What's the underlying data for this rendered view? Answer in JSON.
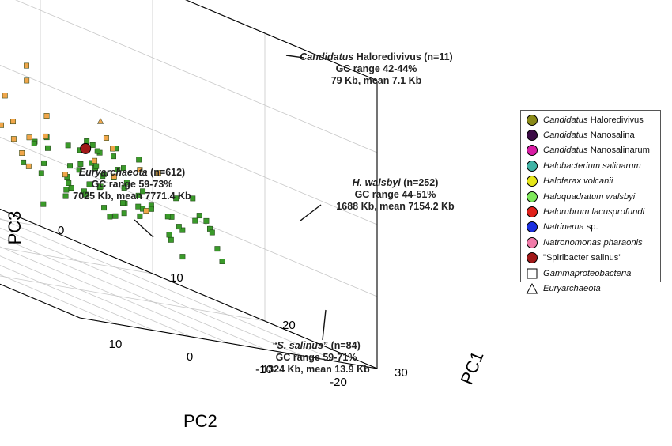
{
  "chart_data": {
    "type": "scatter",
    "projection": "3d",
    "axes": {
      "pc1": {
        "label": "PC1",
        "range": [
          -20,
          30
        ],
        "ticks": [
          -20,
          -10,
          0,
          10,
          20,
          30
        ],
        "tick_labels": [
          "-20",
          "-10",
          "0",
          "10",
          "20",
          "30"
        ]
      },
      "pc2": {
        "label": "PC2",
        "range": [
          -25,
          15
        ],
        "ticks": [
          10,
          0,
          -10,
          -20
        ],
        "tick_labels": [
          "10",
          "0",
          "-10",
          "-20"
        ]
      },
      "pc3": {
        "label": "PC3",
        "range": [
          -10,
          30
        ],
        "ticks": [
          -10,
          0,
          10,
          20,
          30
        ],
        "tick_labels": [
          "-10",
          "0",
          "10",
          "20",
          "30"
        ]
      }
    },
    "grid": true,
    "clusters": [
      {
        "name": "Euryarchaeota",
        "color": "#2e8b22",
        "marker": "triangle",
        "n": 612,
        "center": [
          -5,
          5,
          2
        ],
        "spread": [
          6,
          4,
          4
        ],
        "count_drawn": 520
      },
      {
        "name": "H. walsbyi",
        "color": "#3a8fd6",
        "marker": "triangle",
        "n": 252,
        "center": [
          -8,
          -10,
          12
        ],
        "spread": [
          5,
          3,
          3
        ],
        "count_drawn": 230
      },
      {
        "name": "Candidatus Haloredivivus",
        "color": "#f0a64a",
        "marker": "triangle",
        "n": 11,
        "center": [
          -6,
          -14,
          30
        ],
        "spread": [
          3,
          2,
          2.5
        ],
        "count_drawn": 14
      },
      {
        "name": "S. salinus",
        "color": "#3a9a2a",
        "marker": "square",
        "n": 84,
        "center": [
          10,
          -19,
          2
        ],
        "spread": [
          4,
          3,
          3
        ],
        "count_drawn": 70
      },
      {
        "name": "Gammaproteobacteria (orange)",
        "color": "#f0a64a",
        "marker": "square",
        "n": 30,
        "center": [
          3,
          -16,
          5
        ],
        "spread": [
          7,
          4,
          3
        ],
        "count_drawn": 30
      },
      {
        "name": "Euryarchaeota (orange)",
        "color": "#f0a64a",
        "marker": "triangle",
        "n": 40,
        "center": [
          -6,
          -6,
          4
        ],
        "spread": [
          6,
          5,
          4
        ],
        "count_drawn": 40
      }
    ],
    "highlighted": [
      {
        "name": "Candidatus Haloredivivus",
        "color": "#8a8a18",
        "pos": [
          -5,
          -14,
          33
        ]
      },
      {
        "name": "Candidatus Nanosalina",
        "color": "#3b0a45",
        "pos": [
          -5,
          -14,
          26
        ]
      },
      {
        "name": "Candidatus Nanosalinarum",
        "color": "#d81ca4",
        "pos": [
          -7,
          -6,
          16
        ]
      },
      {
        "name": "Halobacterium salinarum",
        "color": "#3fb3a5",
        "pos": [
          0,
          -3,
          -2
        ]
      },
      {
        "name": "Haloferax volcanii",
        "color": "#e6e619",
        "pos": [
          -7,
          6,
          8
        ]
      },
      {
        "name": "Haloquadratum walsbyi",
        "color": "#7ee85a",
        "pos": [
          -8,
          -10,
          12
        ]
      },
      {
        "name": "Halorubrum lacusprofundi",
        "color": "#e0201a",
        "pos": [
          -6,
          5,
          6
        ]
      },
      {
        "name": "Natrinema sp.",
        "color": "#1a2fe0",
        "pos": [
          -6,
          4,
          5
        ]
      },
      {
        "name": "Natronomonas pharaonis",
        "color": "#f07aa8",
        "pos": [
          -4,
          0,
          5
        ]
      },
      {
        "name": "Spiribacter salinus",
        "color": "#a01818",
        "pos": [
          8,
          -19,
          5
        ]
      }
    ],
    "annotations": [
      {
        "id": "ann-haloredivivus",
        "lines": [
          [
            "Candidatus",
            " Haloredivivus (n=11)"
          ],
          [
            "",
            "GC range 42-44%"
          ],
          [
            "",
            "79 Kb, mean 7.1 Kb"
          ]
        ]
      },
      {
        "id": "ann-walsbyi",
        "lines": [
          [
            "H. walsbyi",
            " (n=252)"
          ],
          [
            "",
            "GC range 44-51%"
          ],
          [
            "",
            "1688 Kb, mean 7154.2 Kb"
          ]
        ]
      },
      {
        "id": "ann-euryarchaeota",
        "lines": [
          [
            "Euryarchaeota",
            " (n=612)"
          ],
          [
            "",
            "GC range 59-73%"
          ],
          [
            "",
            "7025 Kb, mean 7771.4 Kb"
          ]
        ]
      },
      {
        "id": "ann-salinus",
        "lines": [
          [
            "“S. salinus",
            "” (n=84)"
          ],
          [
            "",
            "GC range 59-71%"
          ],
          [
            "",
            "1324 Kb, mean 13.9 Kb"
          ]
        ]
      }
    ],
    "legend": [
      {
        "shape": "circle",
        "color": "#8a8a18",
        "italic": "Candidatus",
        "rest": " Haloredivivus"
      },
      {
        "shape": "circle",
        "color": "#3b0a45",
        "italic": "Candidatus",
        "rest": " Nanosalina"
      },
      {
        "shape": "circle",
        "color": "#d81ca4",
        "italic": "Candidatus",
        "rest": " Nanosalinarum"
      },
      {
        "shape": "circle",
        "color": "#3fb3a5",
        "italic": "Halobacterium salinarum",
        "rest": ""
      },
      {
        "shape": "circle",
        "color": "#e6e619",
        "italic": "Haloferax volcanii",
        "rest": ""
      },
      {
        "shape": "circle",
        "color": "#7ee85a",
        "italic": "Haloquadratum walsbyi",
        "rest": ""
      },
      {
        "shape": "circle",
        "color": "#e0201a",
        "italic": "Halorubrum lacusprofundi",
        "rest": ""
      },
      {
        "shape": "circle",
        "color": "#1a2fe0",
        "italic": "Natrinema",
        "rest": " sp."
      },
      {
        "shape": "circle",
        "color": "#f07aa8",
        "italic": "Natronomonas pharaonis",
        "rest": ""
      },
      {
        "shape": "circle",
        "color": "#a01818",
        "italic": "",
        "rest": "\"Spiribacter salinus\""
      },
      {
        "shape": "square",
        "color": "#ffffff",
        "italic": "Gammaproteobacteria",
        "rest": ""
      },
      {
        "shape": "triangle",
        "color": "#ffffff",
        "italic": "Euryarchaeota",
        "rest": ""
      }
    ]
  }
}
